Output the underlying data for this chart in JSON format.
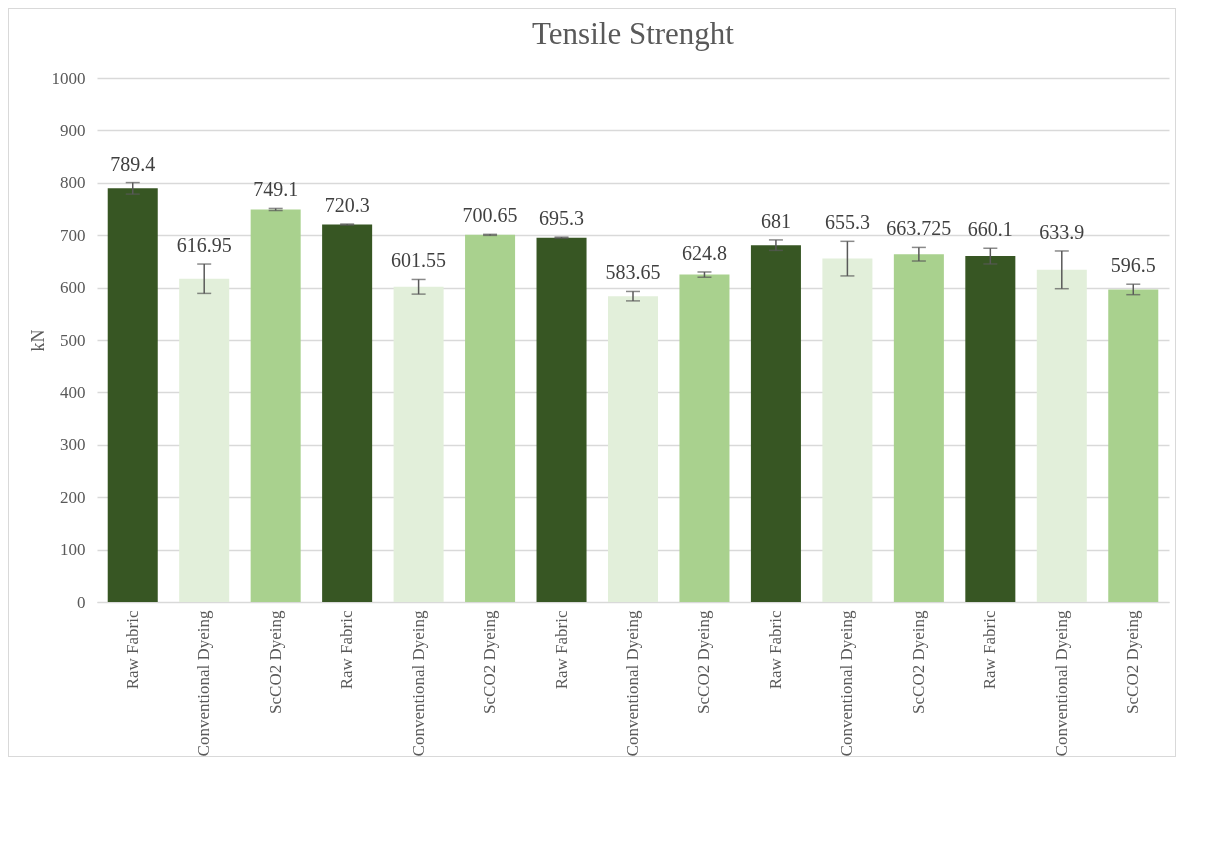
{
  "chart_data": {
    "type": "bar",
    "title": "Tensile Strenght",
    "ylabel": "kN",
    "categories": [
      "Raw Fabric",
      "Conventional Dyeing",
      "ScCO2 Dyeing",
      "Raw Fabric",
      "Conventional Dyeing",
      "ScCO2 Dyeing",
      "Raw Fabric",
      "Conventional Dyeing",
      "ScCO2 Dyeing",
      "Raw Fabric",
      "Conventional Dyeing",
      "ScCO2 Dyeing",
      "Raw Fabric",
      "Conventional Dyeing",
      "ScCO2 Dyeing"
    ],
    "values": [
      789.4,
      616.95,
      749.1,
      720.3,
      601.55,
      700.65,
      695.3,
      583.65,
      624.8,
      681,
      655.3,
      663.725,
      660.1,
      633.9,
      596.5
    ],
    "errors": [
      11,
      28,
      2,
      1,
      14,
      1,
      1,
      9,
      5,
      10,
      33,
      13,
      15,
      36,
      10
    ],
    "colors": [
      "#375623",
      "#e2efda",
      "#a9d18e",
      "#375623",
      "#e2efda",
      "#a9d18e",
      "#375623",
      "#e2efda",
      "#a9d18e",
      "#375623",
      "#e2efda",
      "#a9d18e",
      "#375623",
      "#e2efda",
      "#a9d18e"
    ],
    "ylim": [
      0,
      1000
    ],
    "yticks": [
      0,
      100,
      200,
      300,
      400,
      500,
      600,
      700,
      800,
      900,
      1000
    ],
    "grid": "y",
    "data_labels": true
  }
}
